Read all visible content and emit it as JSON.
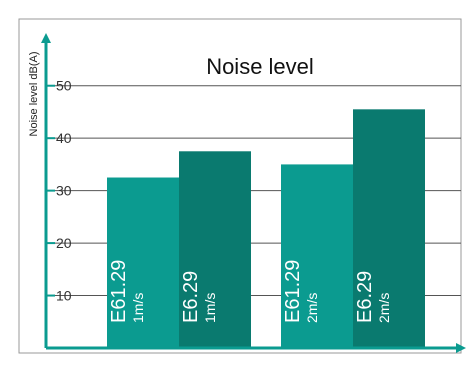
{
  "chart_data": {
    "type": "bar",
    "title": "Noise level",
    "ylabel": "Noise level dB(A)",
    "xlabel": "",
    "ylim": [
      0,
      57
    ],
    "yticks": [
      10,
      20,
      30,
      40,
      50
    ],
    "grid": true,
    "categories": [
      {
        "model": "E61.29",
        "speed": "1m/s"
      },
      {
        "model": "E6.29",
        "speed": "1m/s"
      },
      {
        "model": "E61.29",
        "speed": "2m/s"
      },
      {
        "model": "E6.29",
        "speed": "2m/s"
      }
    ],
    "values": [
      32.5,
      37.5,
      35,
      45.5
    ],
    "colors": {
      "bar_light": "#0b9b90",
      "bar_dark": "#0a7a6f",
      "axis": "#0b9b90",
      "grid": "#555555",
      "frame": "#999999",
      "bar_text": "#ffffff"
    }
  }
}
